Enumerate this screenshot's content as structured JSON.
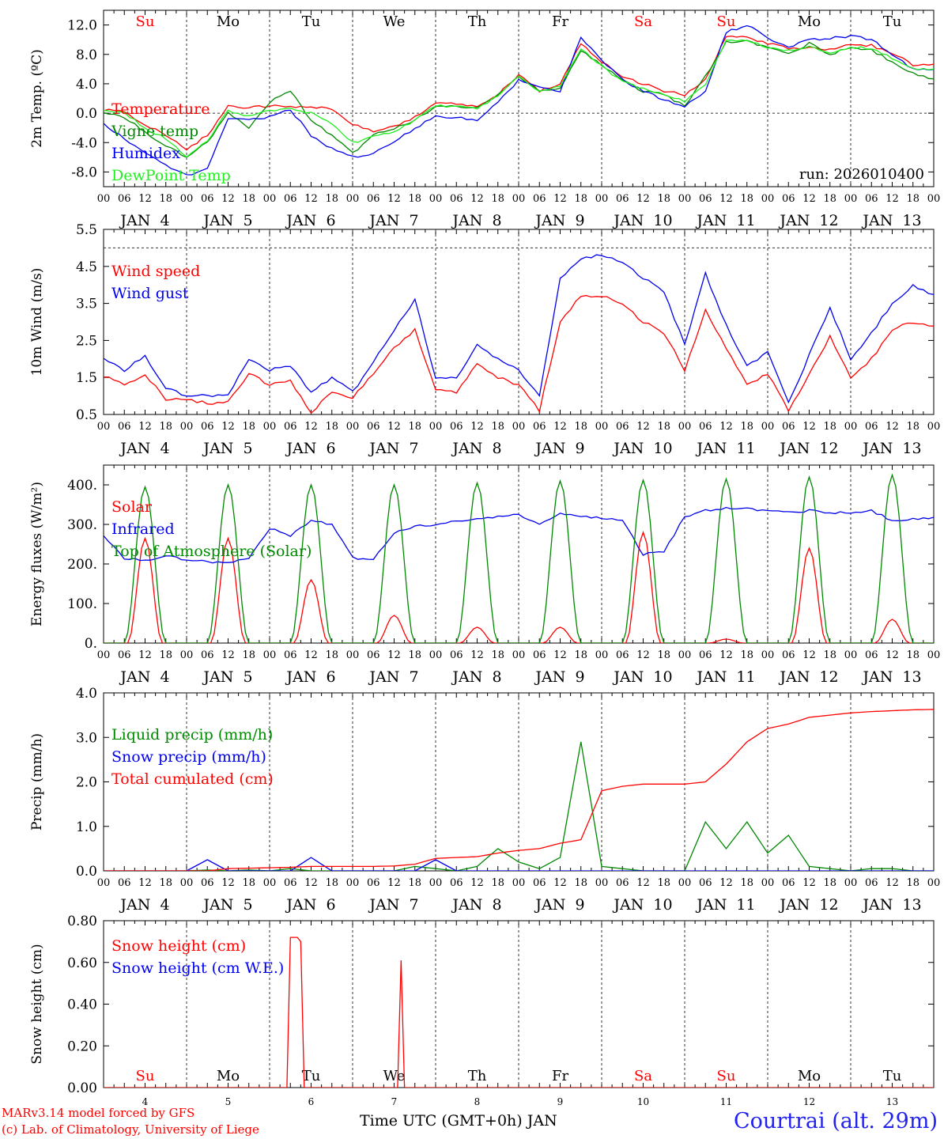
{
  "days": [
    "Su",
    "Mo",
    "Tu",
    "We",
    "Th",
    "Fr",
    "Sa",
    "Su",
    "Mo",
    "Tu"
  ],
  "weekend_days": [
    "Su",
    "Sa"
  ],
  "date_labels": [
    "JAN  4",
    "JAN  5",
    "JAN  6",
    "JAN  7",
    "JAN  8",
    "JAN  9",
    "JAN 10",
    "JAN 11",
    "JAN 12",
    "JAN 13"
  ],
  "day_numbers": [
    "4",
    "5",
    "6",
    "7",
    "8",
    "9",
    "10",
    "11",
    "12",
    "13"
  ],
  "hour_ticks": [
    "00",
    "06",
    "12",
    "18"
  ],
  "last_hour_tick": "00",
  "footer": {
    "model": "MARv3.14 model forced by GFS",
    "copyright": "(c) Lab. of Climatology, University of Liege",
    "axis_label": "Time UTC (GMT+0h) JAN",
    "station": "Courtrai (alt. 29m)"
  },
  "colors": {
    "red": "#ff0000",
    "green": "#008800",
    "lightgreen": "#22ee22",
    "blue": "#0000ee",
    "black": "#000000"
  },
  "chart_data": [
    {
      "type": "line",
      "title": "",
      "ylabel": "2m Temp. (ºC)",
      "ylim": [
        -10,
        14
      ],
      "yticks": [
        "-8.0",
        "-4.0",
        "0.0",
        "4.0",
        "8.0",
        "12.0"
      ],
      "ytick_values": [
        -8,
        -4,
        0,
        4,
        8,
        12
      ],
      "ref_lines": [
        0
      ],
      "annotation": "run: 2026010400",
      "x_hours": [
        0,
        6,
        12,
        18,
        24,
        30,
        36,
        42,
        48,
        54,
        60,
        66,
        72,
        78,
        84,
        90,
        96,
        102,
        108,
        114,
        120,
        126,
        132,
        138,
        144,
        150,
        156,
        162,
        168,
        174,
        180,
        186,
        192,
        198,
        204,
        210,
        216,
        222,
        228,
        234,
        240
      ],
      "series": [
        {
          "name": "Temperature",
          "color": "red",
          "values": [
            0.5,
            0.2,
            -1.5,
            -3.0,
            -5.0,
            -3.0,
            1.0,
            0.7,
            1.0,
            0.8,
            0.9,
            0.5,
            -1.5,
            -2.5,
            -1.8,
            -0.5,
            1.5,
            1.3,
            1.0,
            2.5,
            5.2,
            3.0,
            4.0,
            9.5,
            7.0,
            5.0,
            4.0,
            3.0,
            2.5,
            4.5,
            10.5,
            10.3,
            9.5,
            8.8,
            9.0,
            8.6,
            9.4,
            9.2,
            8.2,
            6.6,
            6.5
          ]
        },
        {
          "name": "Vigne temp",
          "color": "green",
          "values": [
            0.0,
            -0.5,
            -2.5,
            -4.5,
            -6.0,
            -4.0,
            0.2,
            -2.0,
            1.5,
            3.0,
            -1.0,
            -3.0,
            -5.5,
            -3.0,
            -2.0,
            -1.0,
            1.0,
            1.0,
            0.8,
            2.5,
            5.0,
            3.0,
            3.5,
            8.5,
            6.5,
            4.5,
            3.0,
            2.5,
            1.0,
            5.0,
            9.6,
            9.8,
            9.0,
            8.0,
            9.5,
            8.0,
            9.0,
            8.6,
            7.0,
            5.5,
            4.5
          ]
        },
        {
          "name": "Humidex",
          "color": "blue",
          "values": [
            -1.5,
            -3.5,
            -5.5,
            -7.0,
            -8.5,
            -7.5,
            -0.8,
            -1.0,
            -0.5,
            0.5,
            -3.0,
            -4.8,
            -6.0,
            -5.5,
            -4.0,
            -2.0,
            -0.5,
            -0.5,
            -1.0,
            1.5,
            4.5,
            3.5,
            3.0,
            10.3,
            7.2,
            4.5,
            3.0,
            1.8,
            1.0,
            3.0,
            11.0,
            12.0,
            10.2,
            9.0,
            10.0,
            10.2,
            10.5,
            10.0,
            8.0,
            6.0,
            5.8
          ]
        },
        {
          "name": "DewPoint Temp",
          "color": "lightgreen",
          "values": [
            0.3,
            0.0,
            -2.0,
            -3.5,
            -5.8,
            -3.8,
            0.4,
            -0.5,
            0.3,
            0.6,
            0.0,
            -1.5,
            -4.0,
            -3.2,
            -2.5,
            -1.0,
            1.0,
            1.0,
            0.7,
            2.3,
            5.0,
            2.8,
            3.6,
            8.8,
            6.5,
            4.2,
            3.3,
            2.5,
            1.6,
            4.0,
            9.9,
            9.8,
            9.0,
            8.5,
            9.0,
            8.2,
            9.0,
            8.8,
            7.5,
            6.0,
            6.0
          ]
        }
      ]
    },
    {
      "type": "line",
      "ylabel": "10m Wind (m/s)",
      "ylim": [
        0.5,
        5.5
      ],
      "yticks": [
        "0.5",
        "1.5",
        "2.5",
        "3.5",
        "4.5",
        "5.5"
      ],
      "ytick_values": [
        0.5,
        1.5,
        2.5,
        3.5,
        4.5,
        5.5
      ],
      "ref_lines": [
        5.0
      ],
      "x_hours": [
        0,
        6,
        12,
        18,
        24,
        30,
        36,
        42,
        48,
        54,
        60,
        66,
        72,
        78,
        84,
        90,
        96,
        102,
        108,
        114,
        120,
        126,
        132,
        138,
        144,
        150,
        156,
        162,
        168,
        174,
        180,
        186,
        192,
        198,
        204,
        210,
        216,
        222,
        228,
        234,
        240
      ],
      "series": [
        {
          "name": "Wind speed",
          "color": "red",
          "values": [
            1.55,
            1.3,
            1.6,
            0.9,
            0.9,
            0.8,
            0.85,
            1.6,
            1.3,
            1.4,
            0.55,
            1.1,
            0.95,
            1.6,
            2.3,
            2.8,
            1.2,
            1.1,
            1.9,
            1.5,
            1.3,
            0.6,
            3.0,
            3.7,
            3.7,
            3.5,
            3.0,
            2.7,
            1.7,
            3.3,
            2.3,
            1.3,
            1.6,
            0.6,
            1.6,
            2.6,
            1.5,
            2.0,
            2.8,
            3.0,
            2.85
          ]
        },
        {
          "name": "Wind gust",
          "color": "blue",
          "values": [
            2.0,
            1.7,
            2.1,
            1.2,
            1.0,
            1.0,
            1.05,
            2.0,
            1.7,
            1.8,
            1.1,
            1.5,
            1.1,
            1.9,
            2.8,
            3.6,
            1.5,
            1.5,
            2.4,
            2.0,
            1.7,
            1.0,
            4.2,
            4.7,
            4.8,
            4.6,
            4.2,
            3.8,
            2.4,
            4.3,
            2.9,
            1.8,
            2.2,
            0.8,
            2.1,
            3.4,
            2.0,
            2.7,
            3.5,
            4.0,
            3.7
          ]
        }
      ]
    },
    {
      "type": "line",
      "ylabel": "Energy fluxes (W/m²)",
      "ylim": [
        0,
        450
      ],
      "yticks": [
        "0.",
        "100.",
        "200.",
        "300.",
        "400."
      ],
      "ytick_values": [
        0,
        100,
        200,
        300,
        400
      ],
      "peaks": {
        "hours": [
          12,
          36,
          60,
          84,
          108,
          132,
          156,
          180,
          204,
          228
        ],
        "solar": [
          265,
          265,
          160,
          70,
          40,
          40,
          280,
          10,
          240,
          60
        ],
        "toa": [
          395,
          400,
          400,
          400,
          405,
          410,
          412,
          415,
          420,
          425
        ]
      },
      "x_hours": [
        0,
        6,
        12,
        18,
        24,
        30,
        36,
        42,
        48,
        54,
        60,
        66,
        72,
        78,
        84,
        90,
        96,
        102,
        108,
        114,
        120,
        126,
        132,
        138,
        144,
        150,
        156,
        162,
        168,
        174,
        180,
        186,
        192,
        198,
        204,
        210,
        216,
        222,
        228,
        234,
        240
      ],
      "series": [
        {
          "name": "Solar",
          "color": "red",
          "values": []
        },
        {
          "name": "Infrared",
          "color": "blue",
          "values": [
            270,
            215,
            210,
            220,
            210,
            205,
            205,
            215,
            290,
            270,
            310,
            300,
            215,
            210,
            280,
            295,
            300,
            310,
            315,
            320,
            325,
            300,
            330,
            320,
            315,
            310,
            225,
            230,
            320,
            335,
            340,
            340,
            335,
            330,
            335,
            330,
            330,
            335,
            310,
            315,
            315
          ]
        },
        {
          "name": "Top of Atmosphere (Solar)",
          "color": "green",
          "values": []
        }
      ]
    },
    {
      "type": "line",
      "ylabel": "Precip (mm/h)",
      "ylim": [
        0,
        4
      ],
      "yticks": [
        "0.0",
        "1.0",
        "2.0",
        "3.0",
        "4.0"
      ],
      "ytick_values": [
        0,
        1,
        2,
        3,
        4
      ],
      "x_hours": [
        0,
        6,
        12,
        18,
        24,
        30,
        36,
        42,
        48,
        54,
        60,
        66,
        72,
        78,
        84,
        90,
        96,
        102,
        108,
        114,
        120,
        126,
        132,
        138,
        144,
        150,
        156,
        162,
        168,
        174,
        180,
        186,
        192,
        198,
        204,
        210,
        216,
        222,
        228,
        234,
        240
      ],
      "series": [
        {
          "name": "Liquid precip (mm/h)",
          "color": "green",
          "values": [
            0,
            0,
            0,
            0,
            0,
            0.02,
            0,
            0.02,
            0,
            0.05,
            0,
            0,
            0,
            0,
            0,
            0.1,
            0.05,
            0,
            0.1,
            0.5,
            0.2,
            0.05,
            0.3,
            2.9,
            0.1,
            0.05,
            0,
            0,
            0,
            1.1,
            0.5,
            1.1,
            0.4,
            0.8,
            0.1,
            0.05,
            0,
            0.05,
            0.05,
            0,
            0
          ]
        },
        {
          "name": "Snow precip (mm/h)",
          "color": "blue",
          "values": [
            0,
            0,
            0,
            0,
            0,
            0.25,
            0,
            0,
            0,
            0,
            0.3,
            0,
            0,
            0,
            0,
            0,
            0.25,
            0,
            0,
            0,
            0,
            0,
            0,
            0,
            0,
            0,
            0,
            0,
            0,
            0,
            0,
            0,
            0,
            0,
            0,
            0,
            0,
            0,
            0,
            0,
            0
          ]
        },
        {
          "name": "Total cumulated (cm)",
          "color": "red",
          "values": [
            0,
            0,
            0,
            0,
            0,
            0,
            0.05,
            0.06,
            0.07,
            0.08,
            0.1,
            0.1,
            0.1,
            0.1,
            0.11,
            0.15,
            0.28,
            0.3,
            0.32,
            0.4,
            0.46,
            0.5,
            0.62,
            0.7,
            1.8,
            1.9,
            1.95,
            1.95,
            1.95,
            2.0,
            2.4,
            2.9,
            3.2,
            3.3,
            3.45,
            3.5,
            3.55,
            3.58,
            3.6,
            3.62,
            3.63
          ]
        }
      ]
    },
    {
      "type": "line",
      "ylabel": "Snow height (cm)",
      "ylim": [
        0,
        0.8
      ],
      "yticks": [
        "0.00",
        "0.20",
        "0.40",
        "0.60",
        "0.80"
      ],
      "ytick_values": [
        0,
        0.2,
        0.4,
        0.6,
        0.8
      ],
      "series": [
        {
          "name": "Snow height (cm)",
          "color": "red",
          "points": [
            [
              0,
              0
            ],
            [
              53,
              0
            ],
            [
              54,
              0.72
            ],
            [
              56,
              0.72
            ],
            [
              57,
              0.7
            ],
            [
              58,
              0
            ],
            [
              85,
              0
            ],
            [
              86,
              0.61
            ],
            [
              87,
              0
            ],
            [
              240,
              0
            ]
          ]
        },
        {
          "name": "Snow height (cm W.E.)",
          "color": "blue",
          "points": []
        }
      ]
    }
  ]
}
